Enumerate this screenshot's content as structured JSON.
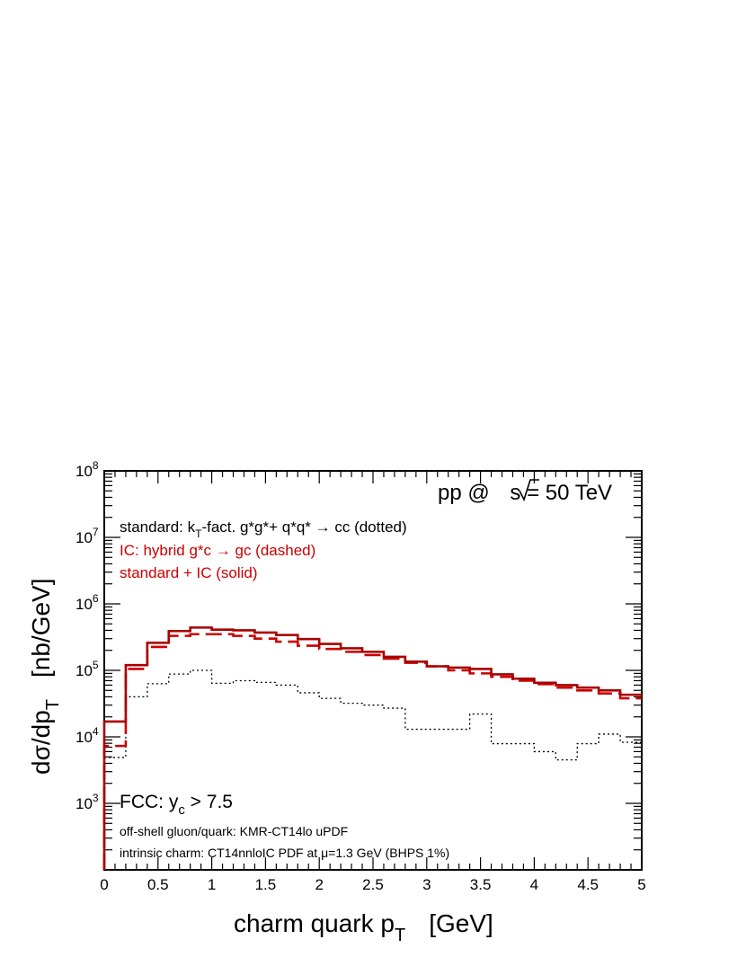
{
  "chart_data": {
    "type": "line",
    "step": true,
    "log_y": true,
    "xlim": [
      0,
      5
    ],
    "ylim": [
      100,
      100000000
    ],
    "x_ticks": [
      {
        "v": 0,
        "label": "0"
      },
      {
        "v": 0.5,
        "label": "0.5"
      },
      {
        "v": 1,
        "label": "1"
      },
      {
        "v": 1.5,
        "label": "1.5"
      },
      {
        "v": 2,
        "label": "2"
      },
      {
        "v": 2.5,
        "label": "2.5"
      },
      {
        "v": 3,
        "label": "3"
      },
      {
        "v": 3.5,
        "label": "3.5"
      },
      {
        "v": 4,
        "label": "4"
      },
      {
        "v": 4.5,
        "label": "4.5"
      },
      {
        "v": 5,
        "label": "5"
      }
    ],
    "y_ticks": [
      {
        "v": 1000,
        "base": "10",
        "exp": "3"
      },
      {
        "v": 10000,
        "base": "10",
        "exp": "4"
      },
      {
        "v": 100000,
        "base": "10",
        "exp": "5"
      },
      {
        "v": 1000000,
        "base": "10",
        "exp": "6"
      },
      {
        "v": 10000000,
        "base": "10",
        "exp": "7"
      },
      {
        "v": 100000000,
        "base": "10",
        "exp": "8"
      }
    ],
    "xlabel": {
      "main": "charm quark p",
      "sub": "T",
      "unit": "[GeV]"
    },
    "ylabel": {
      "main": "dσ/dp",
      "sub": "T",
      "unit": "[nb/GeV]"
    },
    "annotations": {
      "energy": {
        "pre": "pp @ ",
        "rest": "s = 50 TeV"
      },
      "standard": {
        "a": "standard: k",
        "a_sub": "T",
        "b": "-fact. g*g*+ q*q* → cc (dotted)"
      },
      "ic": "IC: hybrid g*c → gc (dashed)",
      "sum": "standard + IC (solid)",
      "fcc": {
        "a": "FCC: y",
        "a_sub": "c",
        "b": " > 7.5"
      },
      "offshell": "off-shell gluon/quark: KMR-CT14lo uPDF",
      "intrinsic": {
        "a": "intrinsic charm: CT14nnloIC PDF at ",
        "mu": "μ",
        "b": "=1.3 GeV (BHPS 1%)"
      }
    },
    "bin_edges": [
      0,
      0.2,
      0.4,
      0.6,
      0.8,
      1.0,
      1.2,
      1.4,
      1.6,
      1.8,
      2.0,
      2.2,
      2.4,
      2.6,
      2.8,
      3.0,
      3.2,
      3.4,
      3.6,
      3.8,
      4.0,
      4.2,
      4.4,
      4.6,
      4.8,
      5.0
    ],
    "series": [
      {
        "style": "dotted",
        "color": "#000000",
        "values": [
          4900,
          40000,
          63000,
          88000,
          100000,
          64000,
          70000,
          66000,
          60000,
          46000,
          38000,
          32000,
          30000,
          27000,
          13000,
          13000,
          13000,
          22000,
          7900,
          7900,
          6000,
          4500,
          7900,
          11000,
          8300
        ]
      },
      {
        "style": "dashed",
        "color": "#cc0000",
        "values": [
          7300,
          105000,
          225000,
          330000,
          350000,
          350000,
          330000,
          300000,
          270000,
          235000,
          210000,
          190000,
          170000,
          150000,
          130000,
          115000,
          100000,
          90000,
          80000,
          70000,
          62000,
          55000,
          50000,
          45000,
          38000
        ]
      },
      {
        "style": "solid",
        "color": "#aa0000",
        "values": [
          17000,
          120000,
          260000,
          390000,
          440000,
          410000,
          400000,
          370000,
          340000,
          295000,
          250000,
          215000,
          190000,
          160000,
          135000,
          115000,
          110000,
          105000,
          87000,
          75000,
          65000,
          60000,
          55000,
          50000,
          43000
        ]
      }
    ]
  }
}
